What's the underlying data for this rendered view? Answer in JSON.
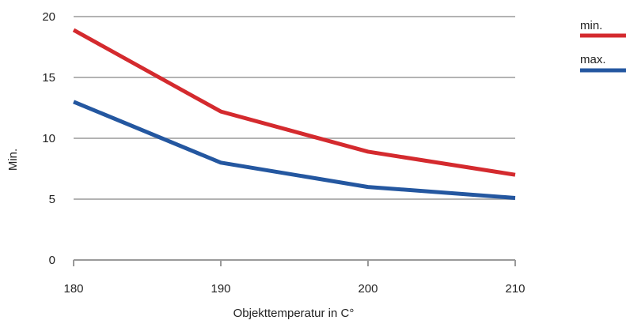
{
  "chart_data": {
    "type": "line",
    "x": [
      180,
      190,
      200,
      210
    ],
    "series": [
      {
        "name": "min.",
        "values": [
          18.9,
          12.2,
          8.9,
          7.0
        ],
        "color": "#d42a2e"
      },
      {
        "name": "max.",
        "values": [
          13.0,
          8.0,
          6.0,
          5.1
        ],
        "color": "#2457a0"
      }
    ],
    "xlabel": "Objekttemperatur in C°",
    "ylabel": "Min.",
    "xlim": [
      180,
      210
    ],
    "ylim": [
      0,
      20
    ],
    "yticks": [
      0,
      5,
      10,
      15,
      20
    ],
    "xticks": [
      180,
      190,
      200,
      210
    ],
    "grid": "horizontal",
    "legend": "top-right",
    "colors": {
      "grid": "#b3b3b3",
      "axis": "#9a9a9a"
    }
  }
}
